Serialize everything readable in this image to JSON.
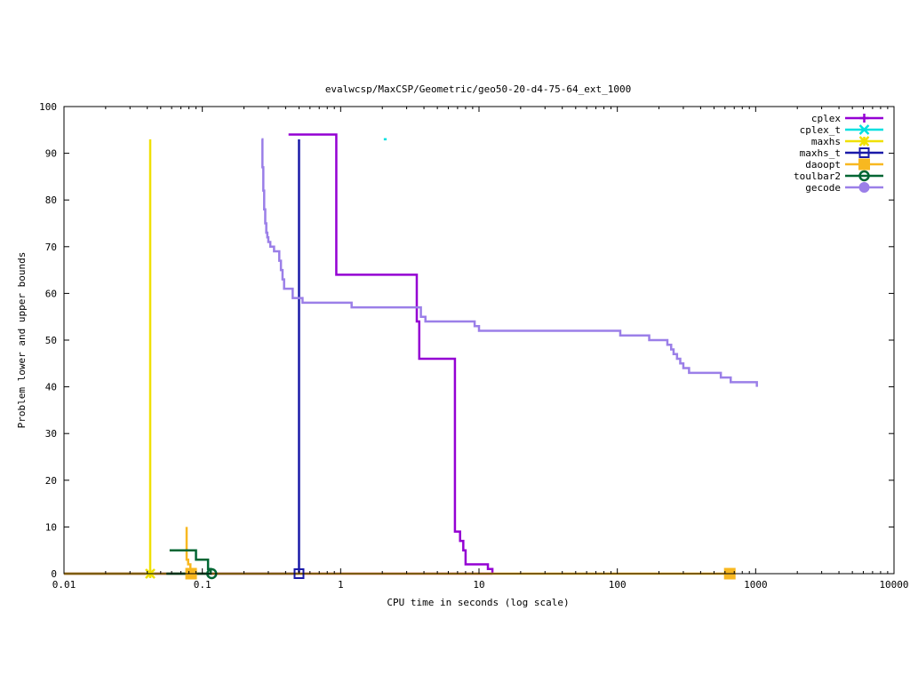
{
  "chart_data": {
    "type": "line",
    "title": "evalwcsp/MaxCSP/Geometric/geo50-20-d4-75-64_ext_1000",
    "xlabel": "CPU time in seconds (log scale)",
    "ylabel": "Problem lower and upper bounds",
    "x_scale": "log",
    "xlim": [
      0.01,
      10000
    ],
    "ylim": [
      0,
      100
    ],
    "x_ticks": [
      {
        "value": 0.01,
        "label": "0.01"
      },
      {
        "value": 0.1,
        "label": "0.1"
      },
      {
        "value": 1,
        "label": "1"
      },
      {
        "value": 10,
        "label": "10"
      },
      {
        "value": 100,
        "label": "100"
      },
      {
        "value": 1000,
        "label": "1000"
      },
      {
        "value": 10000,
        "label": "10000"
      }
    ],
    "y_ticks": [
      {
        "value": 0,
        "label": "0"
      },
      {
        "value": 10,
        "label": "10"
      },
      {
        "value": 20,
        "label": "20"
      },
      {
        "value": 30,
        "label": "30"
      },
      {
        "value": 40,
        "label": "40"
      },
      {
        "value": 50,
        "label": "50"
      },
      {
        "value": 60,
        "label": "60"
      },
      {
        "value": 70,
        "label": "70"
      },
      {
        "value": 80,
        "label": "80"
      },
      {
        "value": 90,
        "label": "90"
      },
      {
        "value": 100,
        "label": "100"
      }
    ],
    "grid": false,
    "legend_position": "top-right",
    "series": [
      {
        "name": "cplex",
        "color": "#9400d3",
        "marker": "plus",
        "upper": [
          [
            0.42,
            94
          ],
          [
            0.93,
            94
          ],
          [
            0.93,
            64
          ],
          [
            3.55,
            64
          ],
          [
            3.55,
            54
          ],
          [
            3.7,
            54
          ],
          [
            3.7,
            46
          ],
          [
            6.7,
            46
          ],
          [
            6.7,
            9
          ],
          [
            7.3,
            9
          ],
          [
            7.3,
            7
          ],
          [
            7.7,
            7
          ],
          [
            7.7,
            5
          ],
          [
            8.0,
            5
          ],
          [
            8.0,
            2
          ],
          [
            11.6,
            2
          ],
          [
            11.6,
            1
          ],
          [
            12.5,
            1
          ],
          [
            12.5,
            0
          ]
        ],
        "lower": [
          [
            0.01,
            0
          ],
          [
            12.5,
            0
          ]
        ],
        "marker_points": []
      },
      {
        "name": "cplex_t",
        "color": "#00e0e0",
        "marker": "x",
        "upper": [
          [
            2.05,
            93
          ],
          [
            2.15,
            93
          ]
        ],
        "lower": [],
        "marker_points": []
      },
      {
        "name": "maxhs",
        "color": "#f0e000",
        "marker": "star",
        "upper": [
          [
            0.042,
            93
          ],
          [
            0.042,
            0
          ]
        ],
        "lower": [
          [
            0.01,
            0
          ],
          [
            0.042,
            0
          ]
        ],
        "marker_points": [
          [
            0.042,
            0
          ]
        ]
      },
      {
        "name": "maxhs_t",
        "color": "#1a1aa8",
        "marker": "open-square",
        "upper": [
          [
            0.5,
            93
          ],
          [
            0.5,
            0
          ]
        ],
        "lower": [
          [
            0.01,
            0
          ],
          [
            0.5,
            0
          ]
        ],
        "marker_points": [
          [
            0.5,
            0
          ]
        ]
      },
      {
        "name": "daoopt",
        "color": "#f8b820",
        "marker": "filled-square",
        "upper": [
          [
            0.077,
            10
          ],
          [
            0.077,
            3
          ],
          [
            0.079,
            3
          ],
          [
            0.079,
            2
          ],
          [
            0.082,
            2
          ],
          [
            0.082,
            0
          ]
        ],
        "lower": [
          [
            0.01,
            0
          ],
          [
            650,
            0
          ]
        ],
        "marker_points": [
          [
            0.083,
            0
          ],
          [
            650,
            0
          ]
        ]
      },
      {
        "name": "toulbar2",
        "color": "#006633",
        "marker": "open-circle",
        "upper": [
          [
            0.058,
            5
          ],
          [
            0.09,
            5
          ],
          [
            0.09,
            3
          ],
          [
            0.11,
            3
          ],
          [
            0.11,
            1
          ],
          [
            0.115,
            1
          ],
          [
            0.115,
            0
          ]
        ],
        "lower": [
          [
            0.055,
            0
          ],
          [
            0.117,
            0
          ]
        ],
        "marker_points": [
          [
            0.117,
            0
          ]
        ]
      },
      {
        "name": "gecode",
        "color": "#9b7fe8",
        "marker": "filled-circle",
        "upper": [
          [
            0.268,
            93
          ],
          [
            0.272,
            93
          ],
          [
            0.272,
            87
          ],
          [
            0.276,
            87
          ],
          [
            0.276,
            82
          ],
          [
            0.28,
            82
          ],
          [
            0.28,
            78
          ],
          [
            0.285,
            78
          ],
          [
            0.285,
            75
          ],
          [
            0.29,
            75
          ],
          [
            0.29,
            73
          ],
          [
            0.295,
            73
          ],
          [
            0.295,
            72
          ],
          [
            0.3,
            72
          ],
          [
            0.3,
            71
          ],
          [
            0.31,
            71
          ],
          [
            0.31,
            70
          ],
          [
            0.33,
            70
          ],
          [
            0.33,
            69
          ],
          [
            0.36,
            69
          ],
          [
            0.36,
            67
          ],
          [
            0.37,
            67
          ],
          [
            0.37,
            65
          ],
          [
            0.38,
            65
          ],
          [
            0.38,
            63
          ],
          [
            0.39,
            63
          ],
          [
            0.39,
            61
          ],
          [
            0.45,
            61
          ],
          [
            0.45,
            59
          ],
          [
            0.53,
            59
          ],
          [
            0.53,
            58
          ],
          [
            1.2,
            58
          ],
          [
            1.2,
            57
          ],
          [
            3.8,
            57
          ],
          [
            3.8,
            55
          ],
          [
            4.1,
            55
          ],
          [
            4.1,
            54
          ],
          [
            9.3,
            54
          ],
          [
            9.3,
            53
          ],
          [
            10,
            53
          ],
          [
            10,
            52
          ],
          [
            105,
            52
          ],
          [
            105,
            51
          ],
          [
            170,
            51
          ],
          [
            170,
            50
          ],
          [
            230,
            50
          ],
          [
            230,
            49
          ],
          [
            245,
            49
          ],
          [
            245,
            48
          ],
          [
            255,
            48
          ],
          [
            255,
            47
          ],
          [
            270,
            47
          ],
          [
            270,
            46
          ],
          [
            285,
            46
          ],
          [
            285,
            45
          ],
          [
            300,
            45
          ],
          [
            300,
            44
          ],
          [
            330,
            44
          ],
          [
            330,
            43
          ],
          [
            560,
            43
          ],
          [
            560,
            42
          ],
          [
            660,
            42
          ],
          [
            660,
            41
          ],
          [
            1020,
            41
          ],
          [
            1020,
            40
          ]
        ],
        "lower": [],
        "marker_points": []
      }
    ]
  }
}
